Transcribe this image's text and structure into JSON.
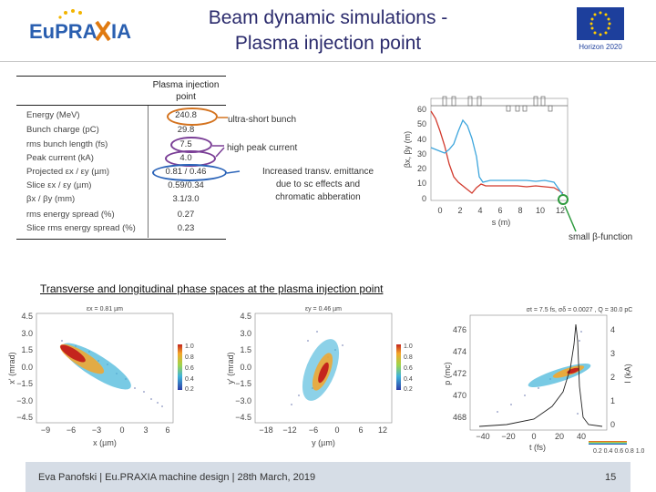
{
  "header": {
    "title_line1": "Beam dynamic simulations -",
    "title_line2": "Plasma injection point",
    "logo_text_1": "EuPRA",
    "logo_text_2": "IA",
    "eu_caption": "Horizon 2020"
  },
  "table": {
    "column_header": "Plasma injection point",
    "rows": [
      {
        "label": "Energy (MeV)",
        "value": "240.8"
      },
      {
        "label": "Bunch charge (pC)",
        "value": "29.8"
      },
      {
        "label": "rms bunch length (fs)",
        "value": "7.5"
      },
      {
        "label": "Peak current (kA)",
        "value": "4.0"
      },
      {
        "label": "Projected εx / εy (µm)",
        "value": "0.81 / 0.46"
      },
      {
        "label": "Slice εx / εy (µm)",
        "value": "0.59/0.34"
      },
      {
        "label": "βx / βy (mm)",
        "value": "3.1/3.0"
      },
      {
        "label": "rms energy spread (%)",
        "value": "0.27"
      },
      {
        "label": "Slice rms energy spread (%)",
        "value": "0.23"
      }
    ]
  },
  "annotations": {
    "ultra_short": "ultra-short bunch",
    "high_peak": "high peak current",
    "emittance_1": "Increased transv. emittance",
    "emittance_2": "due to sc effects and",
    "emittance_3": "chromatic abberation",
    "small_beta": "small β-function"
  },
  "colors": {
    "ring_orange": "#d4731f",
    "ring_purple": "#7a3e96",
    "ring_blue": "#2a63b8",
    "ring_green": "#2e9a3e",
    "title_blue": "#2a2a6c",
    "eu_blue": "#1d3f9c",
    "eu_yellow": "#ffcc00"
  },
  "beta_plot": {
    "x_label": "s (m)",
    "y_label": "βx, βy (m)",
    "x_ticks": [
      "0",
      "2",
      "4",
      "6",
      "8",
      "10",
      "12"
    ],
    "y_ticks": [
      "0",
      "10",
      "20",
      "30",
      "40",
      "50",
      "60"
    ]
  },
  "section_title": "Transverse and longitudinal phase spaces at the plasma injection point",
  "phase_plots": [
    {
      "title": "εx = 0.81 µm",
      "x_label": "x (µm)",
      "y_label": "x' (mrad)",
      "x_ticks": [
        "−9",
        "−6",
        "−3",
        "0",
        "3",
        "6"
      ],
      "y_ticks": [
        "4.5",
        "3.0",
        "1.5",
        "0.0",
        "−1.5",
        "−3.0",
        "−4.5"
      ],
      "colorbar": [
        "1.0",
        "0.8",
        "0.6",
        "0.4",
        "0.2"
      ]
    },
    {
      "title": "εy = 0.46 µm",
      "x_label": "y (µm)",
      "y_label": "y' (mrad)",
      "x_ticks": [
        "−18",
        "−12",
        "−6",
        "0",
        "6",
        "12"
      ],
      "y_ticks": [
        "4.5",
        "3.0",
        "1.5",
        "0.0",
        "−1.5",
        "−3.0",
        "−4.5"
      ],
      "colorbar": [
        "1.0",
        "0.8",
        "0.6",
        "0.4",
        "0.2"
      ]
    },
    {
      "title": "σt = 7.5 fs, σδ = 0.0027 , Q = 30.0 pC",
      "x_label": "t (fs)",
      "y_label": "p (mc)",
      "y2_label": "I (kA)",
      "x_ticks": [
        "−40",
        "−20",
        "0",
        "20",
        "40"
      ],
      "y_ticks": [
        "476",
        "474",
        "472",
        "470",
        "468"
      ],
      "y2_ticks": [
        "4",
        "3",
        "2",
        "1",
        "0"
      ],
      "colorbar_h": "0.2 0.4 0.6 0.8 1.0"
    }
  ],
  "footer": {
    "text": "Eva Panofski | Eu.PRAXIA machine design | 28th March, 2019",
    "page": "15"
  }
}
